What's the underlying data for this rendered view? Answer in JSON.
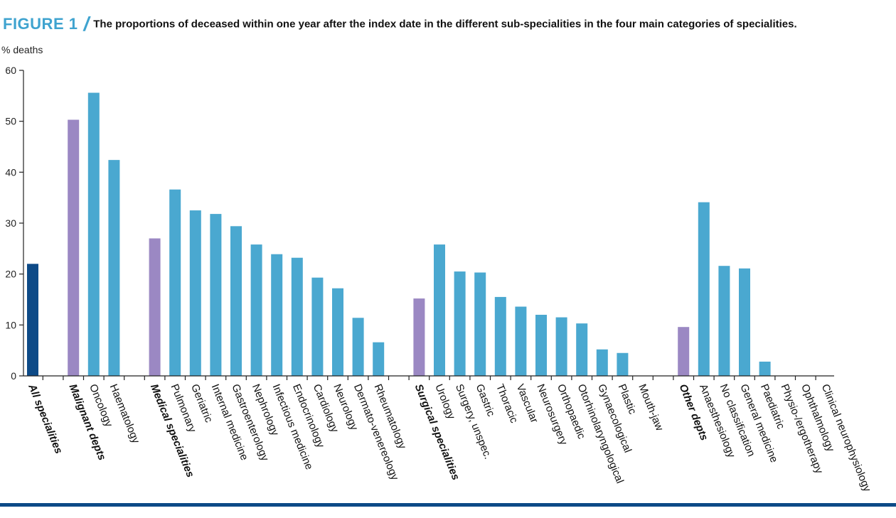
{
  "header": {
    "figure_label": "FIGURE 1",
    "slash": "/",
    "title": "The proportions of deceased within one year after the index date in the different sub-specialities in the four main categories of specialities."
  },
  "colors": {
    "total": "#0d4a87",
    "group": "#9b88c3",
    "sub": "#4aa8d0",
    "accent": "#3fa3cf",
    "rule": "#0d4a87"
  },
  "chart_data": {
    "type": "bar",
    "ylabel": "% deaths",
    "ylim": [
      0,
      60
    ],
    "yticks": [
      0,
      10,
      20,
      30,
      40,
      50,
      60
    ],
    "grid": false,
    "bars": [
      {
        "label": "All specialities",
        "value": 22.0,
        "kind": "total"
      },
      {
        "label": "",
        "value": null,
        "kind": "gap"
      },
      {
        "label": "Malignant depts",
        "value": 50.3,
        "kind": "group"
      },
      {
        "label": "Oncology",
        "value": 55.6,
        "kind": "sub"
      },
      {
        "label": "Haematology",
        "value": 42.4,
        "kind": "sub"
      },
      {
        "label": "",
        "value": null,
        "kind": "gap"
      },
      {
        "label": "Medical specialities",
        "value": 27.0,
        "kind": "group"
      },
      {
        "label": "Pulmonary",
        "value": 36.6,
        "kind": "sub"
      },
      {
        "label": "Geriatric",
        "value": 32.5,
        "kind": "sub"
      },
      {
        "label": "Internal medicine",
        "value": 31.8,
        "kind": "sub"
      },
      {
        "label": "Gastroenterology",
        "value": 29.4,
        "kind": "sub"
      },
      {
        "label": "Nephrology",
        "value": 25.8,
        "kind": "sub"
      },
      {
        "label": "Infectious medicine",
        "value": 23.9,
        "kind": "sub"
      },
      {
        "label": "Endocrinology",
        "value": 23.2,
        "kind": "sub"
      },
      {
        "label": "Cardiology",
        "value": 19.3,
        "kind": "sub"
      },
      {
        "label": "Neurology",
        "value": 17.2,
        "kind": "sub"
      },
      {
        "label": "Dermato-venereology",
        "value": 11.4,
        "kind": "sub"
      },
      {
        "label": "Rheumatology",
        "value": 6.6,
        "kind": "sub"
      },
      {
        "label": "",
        "value": null,
        "kind": "gap"
      },
      {
        "label": "Surgical specialities",
        "value": 15.2,
        "kind": "group"
      },
      {
        "label": "Urology",
        "value": 25.8,
        "kind": "sub"
      },
      {
        "label": "Surgery, unspec.",
        "value": 20.5,
        "kind": "sub"
      },
      {
        "label": "Gastric",
        "value": 20.3,
        "kind": "sub"
      },
      {
        "label": "Thoracic",
        "value": 15.5,
        "kind": "sub"
      },
      {
        "label": "Vascular",
        "value": 13.6,
        "kind": "sub"
      },
      {
        "label": "Neurosurgery",
        "value": 12.0,
        "kind": "sub"
      },
      {
        "label": "Orthopaedic",
        "value": 11.5,
        "kind": "sub"
      },
      {
        "label": "Otorhinolaryngological",
        "value": 10.3,
        "kind": "sub"
      },
      {
        "label": "Gynaecological",
        "value": 5.2,
        "kind": "sub"
      },
      {
        "label": "Plastic",
        "value": 4.5,
        "kind": "sub"
      },
      {
        "label": "Mouth-jaw",
        "value": 0,
        "kind": "sub"
      },
      {
        "label": "",
        "value": null,
        "kind": "gap"
      },
      {
        "label": "Other depts",
        "value": 9.6,
        "kind": "group"
      },
      {
        "label": "Anaesthesiology",
        "value": 34.1,
        "kind": "sub"
      },
      {
        "label": "No classification",
        "value": 21.6,
        "kind": "sub"
      },
      {
        "label": "General medicine",
        "value": 21.1,
        "kind": "sub"
      },
      {
        "label": "Paediatric",
        "value": 2.8,
        "kind": "sub"
      },
      {
        "label": "Physio-/ergotherapy",
        "value": 0,
        "kind": "sub"
      },
      {
        "label": "Ophthalmology",
        "value": 0,
        "kind": "sub"
      },
      {
        "label": "Clinical neurophysiology",
        "value": 0,
        "kind": "sub"
      }
    ]
  }
}
